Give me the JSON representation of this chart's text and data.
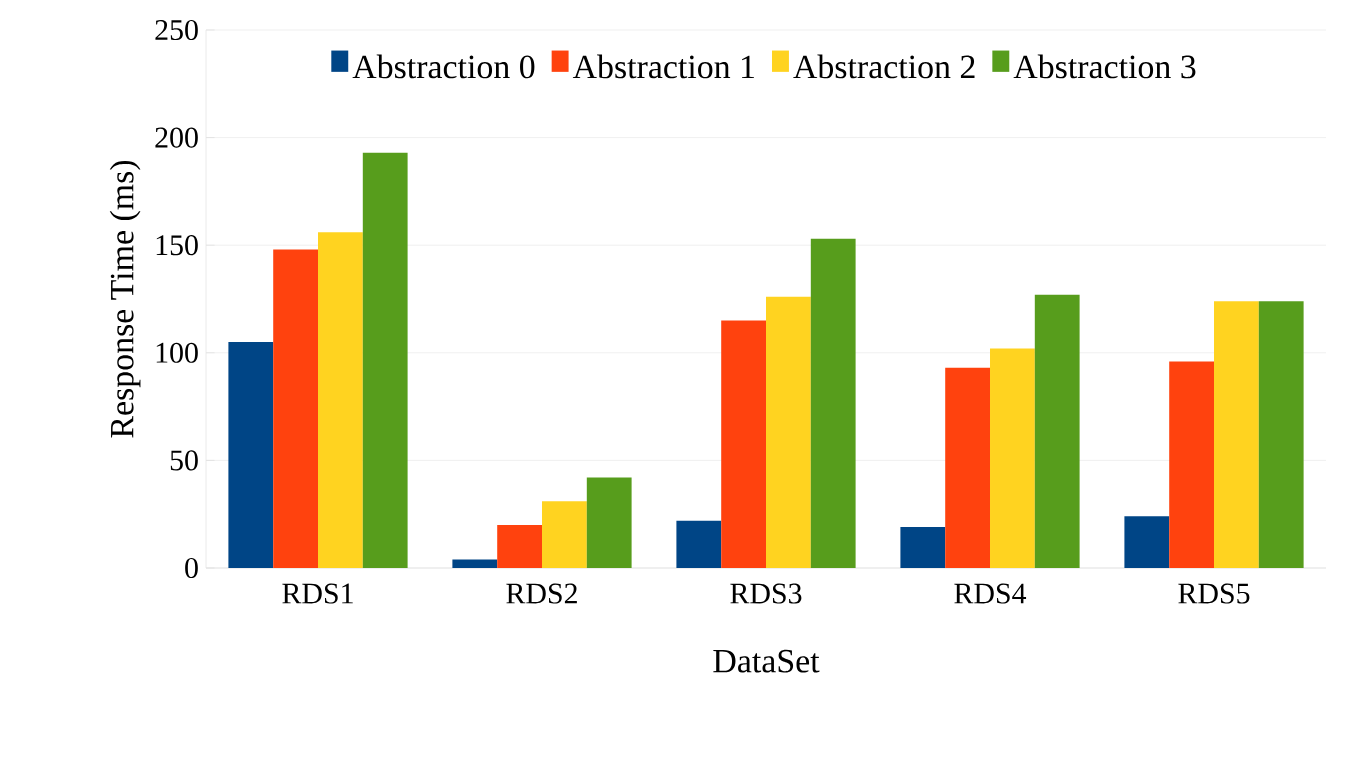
{
  "chart_data": {
    "type": "bar",
    "xlabel": "DataSet",
    "ylabel": "Response Time (ms)",
    "categories": [
      "RDS1",
      "RDS2",
      "RDS3",
      "RDS4",
      "RDS5"
    ],
    "series": [
      {
        "name": "Abstraction 0",
        "color": "#004586",
        "values": [
          105,
          4,
          22,
          19,
          24
        ]
      },
      {
        "name": "Abstraction 1",
        "color": "#ff420e",
        "values": [
          148,
          20,
          115,
          93,
          96
        ]
      },
      {
        "name": "Abstraction 2",
        "color": "#ffd320",
        "values": [
          156,
          31,
          126,
          102,
          124
        ]
      },
      {
        "name": "Abstraction 3",
        "color": "#579d1c",
        "values": [
          193,
          42,
          153,
          127,
          124
        ]
      }
    ],
    "ylim": [
      0,
      250
    ],
    "yticks": [
      0,
      50,
      100,
      150,
      200,
      250
    ],
    "grid": "y",
    "legend": "top"
  }
}
